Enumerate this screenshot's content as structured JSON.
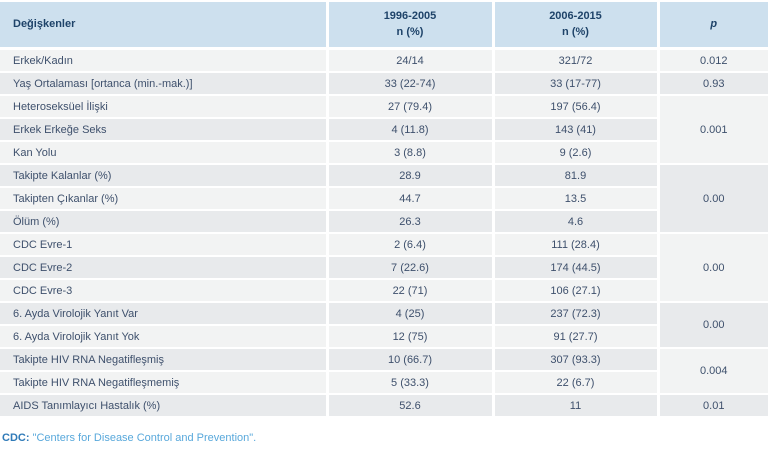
{
  "table": {
    "columns": {
      "variables": "Değişkenler",
      "period1_line1": "1996-2005",
      "period1_line2": "n (%)",
      "period2_line1": "2006-2015",
      "period2_line2": "n (%)",
      "p": "p"
    },
    "rows": [
      {
        "label": "Erkek/Kadın",
        "v1": "24/14",
        "v2": "321/72",
        "p": "0.012"
      },
      {
        "label": "Yaş Ortalaması [ortanca (min.-mak.)]",
        "v1": "33 (22-74)",
        "v2": "33 (17-77)",
        "p": "0.93"
      },
      {
        "label": "Heteroseksüel İlişki",
        "v1": "27 (79.4)",
        "v2": "197 (56.4)",
        "p": "0.001"
      },
      {
        "label": "Erkek Erkeğe Seks",
        "v1": "4 (11.8)",
        "v2": "143 (41)"
      },
      {
        "label": "Kan Yolu",
        "v1": "3 (8.8)",
        "v2": "9 (2.6)"
      },
      {
        "label": "Takipte Kalanlar (%)",
        "v1": "28.9",
        "v2": "81.9",
        "p": "0.00"
      },
      {
        "label": "Takipten Çıkanlar (%)",
        "v1": "44.7",
        "v2": "13.5"
      },
      {
        "label": "Ölüm (%)",
        "v1": "26.3",
        "v2": "4.6"
      },
      {
        "label": "CDC Evre-1",
        "v1": "2 (6.4)",
        "v2": "111 (28.4)",
        "p": "0.00"
      },
      {
        "label": "CDC Evre-2",
        "v1": "7 (22.6)",
        "v2": "174 (44.5)"
      },
      {
        "label": "CDC Evre-3",
        "v1": "22 (71)",
        "v2": "106 (27.1)"
      },
      {
        "label": "6. Ayda Virolojik Yanıt Var",
        "v1": "4 (25)",
        "v2": "237 (72.3)",
        "p": "0.00"
      },
      {
        "label": "6. Ayda Virolojik Yanıt Yok",
        "v1": "12 (75)",
        "v2": "91 (27.7)"
      },
      {
        "label": "Takipte HIV RNA Negatifleşmiş",
        "v1": "10 (66.7)",
        "v2": "307 (93.3)",
        "p": "0.004"
      },
      {
        "label": "Takipte HIV RNA Negatifleşmemiş",
        "v1": "5 (33.3)",
        "v2": "22 (6.7)"
      },
      {
        "label": "AIDS Tanımlayıcı Hastalık (%)",
        "v1": "52.6",
        "v2": "11",
        "p": "0.01"
      }
    ]
  },
  "footnote": {
    "term": "CDC:",
    "definition": "\"Centers for Disease Control and Prevention\"."
  },
  "colors": {
    "header_bg": "#cde0ee",
    "header_text": "#1e4369",
    "row_light": "#f2f3f3",
    "row_dark": "#e8eaec",
    "cell_text": "#3e506c",
    "footnote_term": "#2f7ab8",
    "footnote_definition": "#58a8db"
  }
}
